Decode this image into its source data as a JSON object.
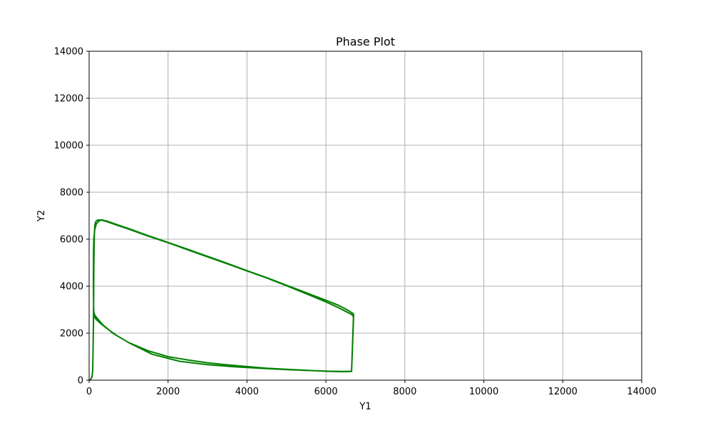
{
  "chart_data": {
    "type": "line",
    "title": "Phase Plot",
    "xlabel": "Y1",
    "ylabel": "Y2",
    "xlim": [
      0,
      14000
    ],
    "ylim": [
      0,
      14000
    ],
    "xticks": [
      0,
      2000,
      4000,
      6000,
      8000,
      10000,
      12000,
      14000
    ],
    "yticks": [
      0,
      2000,
      4000,
      6000,
      8000,
      10000,
      12000,
      14000
    ],
    "grid": true,
    "line_color": "#008000",
    "series": [
      {
        "x": [
          10,
          40,
          70,
          90,
          100,
          110,
          115,
          120,
          125,
          130,
          135,
          140,
          150,
          170,
          200,
          250,
          320,
          450,
          700,
          1000,
          1500,
          2000,
          2500,
          3000,
          3500,
          4000,
          4500,
          5000,
          5500,
          6000,
          6300,
          6500,
          6650,
          6700,
          6650,
          6400,
          6000,
          5500,
          5000,
          4500,
          4000,
          3500,
          3000,
          2500,
          2000,
          1500,
          1000,
          700,
          450,
          300,
          200,
          150,
          130,
          120,
          115,
          110,
          108,
          112,
          120,
          140,
          180,
          250,
          320,
          450,
          700,
          1000,
          1500,
          2000,
          2500,
          3000,
          3500,
          4000,
          4500,
          5000,
          5500,
          6000,
          6300,
          6500,
          6600,
          6700,
          6650,
          6450,
          6100,
          5600,
          5000,
          4400,
          3700,
          3000,
          2300,
          1600,
          1000,
          600,
          350,
          220,
          150,
          125,
          118,
          115
        ],
        "y": [
          0,
          40,
          120,
          400,
          1200,
          2500,
          3800,
          4800,
          5500,
          6000,
          6300,
          6500,
          6650,
          6750,
          6800,
          6820,
          6810,
          6750,
          6600,
          6430,
          6130,
          5850,
          5550,
          5250,
          4950,
          4650,
          4350,
          4020,
          3680,
          3330,
          3100,
          2930,
          2800,
          2700,
          370,
          360,
          380,
          420,
          460,
          510,
          580,
          650,
          740,
          860,
          1000,
          1250,
          1600,
          1900,
          2200,
          2400,
          2550,
          2650,
          2750,
          2850,
          3000,
          3600,
          4500,
          5500,
          6000,
          6400,
          6650,
          6780,
          6820,
          6770,
          6620,
          6450,
          6150,
          5860,
          5570,
          5270,
          4970,
          4660,
          4360,
          4040,
          3720,
          3400,
          3200,
          3030,
          2930,
          2820,
          380,
          370,
          380,
          410,
          450,
          500,
          570,
          660,
          800,
          1100,
          1600,
          2000,
          2350,
          2600,
          2750,
          2850,
          2950,
          3050
        ]
      }
    ]
  }
}
